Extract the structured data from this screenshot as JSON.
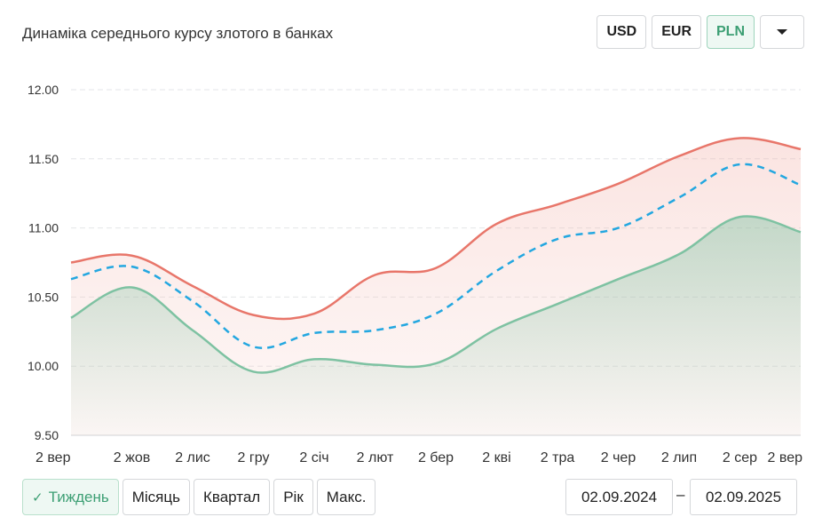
{
  "header": {
    "title": "Динаміка середнього курсу злотого в банках",
    "currencies": [
      "USD",
      "EUR",
      "PLN"
    ],
    "active_currency": "PLN",
    "dropdown_icon": "caret-down-icon"
  },
  "periods": {
    "items": [
      "Тиждень",
      "Місяць",
      "Квартал",
      "Рік",
      "Макс."
    ],
    "active": "Тиждень",
    "check_icon": "check-icon"
  },
  "date_range": {
    "from": "02.09.2024",
    "separator": "–",
    "to": "02.09.2025"
  },
  "chart_data": {
    "type": "line",
    "title": "Динаміка середнього курсу злотого в банках",
    "xlabel": "",
    "ylabel": "",
    "x_ticks": [
      "2 вер",
      "2 жов",
      "2 лис",
      "2 гру",
      "2 січ",
      "2 лют",
      "2 бер",
      "2 кві",
      "2 тра",
      "2 чер",
      "2 лип",
      "2 сер",
      "2 вер"
    ],
    "y_ticks": [
      "12.00",
      "11.50",
      "11.00",
      "10.50",
      "10.00",
      "9.50"
    ],
    "ylim": [
      9.5,
      12.0
    ],
    "grid": true,
    "legend": "none",
    "series": [
      {
        "style": "solid",
        "color": "#e8766a",
        "values": [
          10.75,
          10.8,
          10.58,
          10.37,
          10.38,
          10.66,
          10.71,
          11.03,
          11.17,
          11.32,
          11.52,
          11.65,
          11.57
        ]
      },
      {
        "style": "dashed",
        "color": "#23a7e0",
        "values": [
          10.63,
          10.72,
          10.47,
          10.14,
          10.24,
          10.26,
          10.38,
          10.69,
          10.92,
          11.0,
          11.22,
          11.46,
          11.31
        ]
      },
      {
        "style": "solid",
        "color": "#7ec2a2",
        "values": [
          10.35,
          10.57,
          10.26,
          9.96,
          10.05,
          10.01,
          10.02,
          10.27,
          10.45,
          10.63,
          10.81,
          11.08,
          10.97
        ]
      }
    ]
  }
}
